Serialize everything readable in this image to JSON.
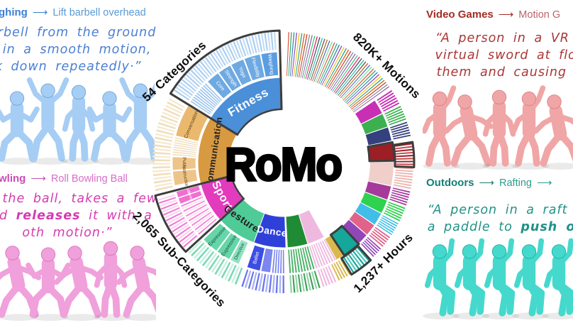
{
  "title": "RoMo",
  "icons": {
    "arrow": "⟶"
  },
  "examples": {
    "top_left": {
      "category_fragment": "ghing",
      "subcategory": "Lift barbell overhead",
      "heading_color": "#3b7fd6",
      "target_color": "#5b9bd5",
      "quote_color": "#4a7fd4",
      "quote_lines": [
        [
          {
            "t": "a barbell from the ground"
          }
        ],
        [
          {
            "t": "ead in a smooth motion,"
          }
        ],
        [
          {
            "t": "ack down repeatedly·”"
          }
        ]
      ],
      "figure_color": "#a6cdf4",
      "figure_shade": "#6fa3d8"
    },
    "top_right": {
      "category": "Video Games",
      "subcategory_fragment": "Motion G",
      "heading_color": "#a32c24",
      "target_color": "#b9646a",
      "quote_color": "#a93636",
      "quote_lines": [
        [
          {
            "t": "“A person in a VR head"
          }
        ],
        [
          {
            "t": "virtual sword at floating"
          }
        ],
        [
          {
            "t": "them and causing them"
          }
        ]
      ],
      "figure_color": "#f0a6a6",
      "figure_shade": "#d67f82"
    },
    "bottom_left": {
      "category_fragment": "wling",
      "subcategory": "Roll Bowling Ball",
      "heading_color": "#c94cb4",
      "target_color": "#d66ec8",
      "quote_color": "#d63bb0",
      "quote_lines": [
        [
          {
            "t": "up the ball, takes a few"
          }
        ],
        [
          {
            "t": "and "
          },
          {
            "t": "releases",
            "b": true
          },
          {
            "t": " it with a"
          }
        ],
        [
          {
            "t": "oth motion·”"
          }
        ]
      ],
      "figure_color": "#f0a0da",
      "figure_shade": "#d872bd"
    },
    "bottom_right": {
      "category": "Outdoors",
      "subcategory": "Rafting",
      "has_second_arrow": true,
      "heading_color": "#157f76",
      "target_color": "#2a9d8f",
      "quote_color": "#219187",
      "quote_lines": [
        [
          {
            "t": "“A person in a raft on th"
          }
        ],
        [
          {
            "t": "a paddle to "
          },
          {
            "t": "push off",
            "b": true
          },
          {
            "t": " fro"
          }
        ]
      ],
      "figure_color": "#45d9cd",
      "figure_shade": "#1faea3"
    }
  },
  "chart_data": {
    "type": "sunburst",
    "center_label": "RoMo",
    "highlight_color": "#3d3d3d",
    "stats": [
      {
        "label": "54 Categories",
        "angle": 310,
        "rotate": -43
      },
      {
        "label": "820K+ Motions",
        "angle": 47,
        "rotate": 44
      },
      {
        "label": "2,065 Sub-Categories",
        "angle": 227,
        "rotate": 46
      },
      {
        "label": "1,237+ Hours",
        "angle": 135,
        "rotate": -45
      }
    ],
    "radii": {
      "cat_in": 76,
      "cat_out": 120,
      "sub_in": 123,
      "sub_out": 156,
      "stripe_in": 159,
      "stripe_out": 184,
      "label_r": 200
    },
    "categories": [
      {
        "name": "Fitness",
        "color": "#4a8fd8",
        "a0": 302,
        "a1": 358,
        "label_size": 17,
        "label_color": "#ffffff"
      },
      {
        "name": "Communication",
        "color": "#d79a41",
        "a0": 255,
        "a1": 302,
        "label_size": 12.5,
        "label_color": "#1d1d1d"
      },
      {
        "name": "Sport",
        "color": "#e33bbd",
        "a0": 228,
        "a1": 255,
        "label_size": 16,
        "label_color": "#ffffff"
      },
      {
        "name": "Gestures",
        "color": "#4ecb97",
        "a0": 200,
        "a1": 228,
        "label_size": 14,
        "label_color": "#1d1d1d"
      },
      {
        "name": "Dance",
        "color": "#2f40d9",
        "a0": 178,
        "a1": 200,
        "label_size": 13.5,
        "label_color": "#ffffff"
      },
      {
        "name": "",
        "color": "#1f8c35",
        "a0": 163,
        "a1": 177
      },
      {
        "name": "",
        "color": "#efb9df",
        "a0": 151,
        "a1": 163
      }
    ],
    "subs": [
      {
        "name": "Core",
        "color": "#6ea9e2",
        "a0": 317,
        "a1": 324,
        "orient": "radial",
        "label_color": "#ffffff",
        "label_size": 7
      },
      {
        "name": "Strength",
        "color": "#6ea9e2",
        "a0": 324.5,
        "a1": 331.5,
        "orient": "radial",
        "label_color": "#ffffff",
        "label_size": 7
      },
      {
        "name": "Yoga",
        "color": "#6ea9e2",
        "a0": 332,
        "a1": 339,
        "orient": "radial",
        "label_color": "#ffffff",
        "label_size": 7
      },
      {
        "name": "Flexibility",
        "color": "#6ea9e2",
        "a0": 339.5,
        "a1": 348,
        "orient": "radial",
        "label_color": "#ffffff",
        "label_size": 7
      },
      {
        "name": "Weighing",
        "color": "#5b9de0",
        "a0": 348.5,
        "a1": 357,
        "orient": "radial",
        "label_color": "#ffffff",
        "label_size": 7
      },
      {
        "name": "Conversation",
        "color": "#eab96e",
        "a0": 284,
        "a1": 301,
        "orient": "tangent",
        "label_color": "#5f4413",
        "label_size": 7
      },
      {
        "name": "Public",
        "color": "#eec488",
        "a0": 266,
        "a1": 273,
        "orient": "tangent",
        "label_color": "#5f4413",
        "label_size": 6.5
      },
      {
        "name": "Instruction",
        "color": "#eec488",
        "a0": 258,
        "a1": 265.5,
        "orient": "tangent",
        "label_color": "#5f4413",
        "label_size": 6.5
      },
      {
        "name": "Cycling",
        "color": "#f06fd0",
        "a0": 251.5,
        "a1": 254.8,
        "orient": "tangent",
        "label_color": "#ffffff",
        "label_size": 5
      },
      {
        "name": "Climbing",
        "color": "#f06fd0",
        "a0": 248,
        "a1": 251.2,
        "orient": "tangent",
        "label_color": "#ffffff",
        "label_size": 5
      },
      {
        "name": "Expressive",
        "color": "#66d5a8",
        "a0": 217,
        "a1": 226,
        "orient": "radial",
        "label_color": "#14553c",
        "label_size": 7
      },
      {
        "name": "Expressive",
        "color": "#66d5a8",
        "a0": 209,
        "a1": 216.5,
        "orient": "radial",
        "label_color": "#14553c",
        "label_size": 7
      },
      {
        "name": "Directive",
        "color": "#8fe2c2",
        "a0": 203.5,
        "a1": 208.5,
        "orient": "radial",
        "label_color": "#14553c",
        "label_size": 6.5
      },
      {
        "name": "Ballet",
        "color": "#3c4de4",
        "a0": 192,
        "a1": 199,
        "orient": "radial",
        "label_color": "#ffffff",
        "label_size": 7
      },
      {
        "name": "",
        "color": "#7b86ee",
        "a0": 186.5,
        "a1": 191.5
      }
    ],
    "blocks": [
      {
        "color": "#c92fb5",
        "a0": 56,
        "a1": 63.5
      },
      {
        "color": "#3cb04f",
        "a0": 64,
        "a1": 71
      },
      {
        "color": "#35407e",
        "a0": 71.5,
        "a1": 78.5
      },
      {
        "color": "#9c1f26",
        "a0": 80,
        "a1": 88.5
      },
      {
        "color": "#f0cfca",
        "a0": 89.5,
        "a1": 102
      },
      {
        "color": "#a53a9a",
        "a0": 102.5,
        "a1": 109.5
      },
      {
        "color": "#2fd14e",
        "a0": 110,
        "a1": 117
      },
      {
        "color": "#41bde8",
        "a0": 117.5,
        "a1": 124
      },
      {
        "color": "#e2638a",
        "a0": 124.5,
        "a1": 130.5
      },
      {
        "color": "#9147b8",
        "a0": 131,
        "a1": 136.5
      },
      {
        "color": "#14a79a",
        "a0": 137.5,
        "a1": 146
      },
      {
        "color": "#d9b94e",
        "a0": 146.5,
        "a1": 151
      }
    ],
    "stripe_groups": [
      {
        "a0": 2,
        "a1": 55,
        "n": 46,
        "ring": "full",
        "duty": 0.35,
        "colors": [
          "#e74c3c",
          "#27ae60",
          "#2980b9",
          "#8e44ad",
          "#f1c40f",
          "#16a085",
          "#d35400",
          "#c0392b",
          "#7f8c8d",
          "#9b59b6",
          "#2ecc71",
          "#e91e63",
          "#34495e",
          "#1abc9c",
          "#6d4c41",
          "#b5651d",
          "#4a69bd",
          "#78e08f"
        ]
      },
      {
        "a0": 56,
        "a1": 63.5,
        "n": 6,
        "colors": [
          "#c92fb5"
        ]
      },
      {
        "a0": 64,
        "a1": 71,
        "n": 6,
        "colors": [
          "#3cb04f"
        ]
      },
      {
        "a0": 71.5,
        "a1": 78.5,
        "n": 6,
        "colors": [
          "#35407e"
        ]
      },
      {
        "a0": 81,
        "a1": 91.5,
        "n": 8,
        "colors": [
          "#9c1f26",
          "#c24a50"
        ]
      },
      {
        "a0": 92,
        "a1": 102,
        "n": 8,
        "colors": [
          "#eeb6b0"
        ]
      },
      {
        "a0": 102.5,
        "a1": 109.5,
        "n": 6,
        "colors": [
          "#a53a9a"
        ]
      },
      {
        "a0": 110,
        "a1": 117,
        "n": 6,
        "colors": [
          "#2fd14e"
        ]
      },
      {
        "a0": 117.5,
        "a1": 124,
        "n": 6,
        "colors": [
          "#41bde8"
        ]
      },
      {
        "a0": 124.5,
        "a1": 130.5,
        "n": 5,
        "colors": [
          "#e2638a"
        ]
      },
      {
        "a0": 131,
        "a1": 136.5,
        "n": 5,
        "colors": [
          "#9147b8"
        ]
      },
      {
        "a0": 138,
        "a1": 148,
        "n": 7,
        "colors": [
          "#14a79a",
          "#4cc8bd"
        ]
      },
      {
        "a0": 148.5,
        "a1": 155,
        "n": 5,
        "colors": [
          "#d9b94e"
        ]
      },
      {
        "a0": 155.5,
        "a1": 162.5,
        "n": 5,
        "colors": [
          "#efb9df"
        ]
      },
      {
        "a0": 151,
        "a1": 163,
        "n": 8,
        "ring": "sub",
        "colors": [
          "#efb9df"
        ]
      },
      {
        "a0": 163,
        "a1": 177,
        "n": 9,
        "ring": "sub",
        "colors": [
          "#4db36a"
        ]
      },
      {
        "a0": 163,
        "a1": 177,
        "n": 10,
        "colors": [
          "#3da055",
          "#8fd3a4"
        ]
      },
      {
        "a0": 179,
        "a1": 186,
        "n": 5,
        "ring": "sub",
        "colors": [
          "#7c87ef"
        ]
      },
      {
        "a0": 179,
        "a1": 199,
        "n": 13,
        "colors": [
          "#6a77ea",
          "#aab3f5"
        ]
      },
      {
        "a0": 200.5,
        "a1": 227,
        "n": 16,
        "colors": [
          "#79d8b4",
          "#c8f0e0"
        ]
      },
      {
        "a0": 229,
        "a1": 247.5,
        "n": 13,
        "ring": "sub",
        "colors": [
          "#f47fd6",
          "#fce0f4"
        ]
      },
      {
        "a0": 229,
        "a1": 254,
        "n": 18,
        "colors": [
          "#f27ad2",
          "#fbd3ef"
        ]
      },
      {
        "a0": 273.5,
        "a1": 283.5,
        "n": 8,
        "ring": "sub",
        "colors": [
          "#f3dfc0"
        ]
      },
      {
        "a0": 257,
        "a1": 300,
        "n": 26,
        "colors": [
          "#f0ddba",
          "#f6ead1"
        ]
      },
      {
        "a0": 303,
        "a1": 316,
        "n": 10,
        "ring": "sub",
        "colors": [
          "#9cc4ec"
        ]
      },
      {
        "a0": 303,
        "a1": 357,
        "n": 38,
        "colors": [
          "#a9cdf0",
          "#c3dcf5"
        ]
      }
    ],
    "highlights": [
      {
        "a0": 301.5,
        "a1": 358.5,
        "r0": 75,
        "r1": 186
      },
      {
        "a0": 227.5,
        "a1": 255.5,
        "r0": 75,
        "r1": 186
      },
      {
        "a0": 79.5,
        "a1": 89,
        "r0": 122,
        "r1": 157
      },
      {
        "a0": 81,
        "a1": 92,
        "r0": 158,
        "r1": 185
      },
      {
        "a0": 137,
        "a1": 146.5,
        "r0": 122,
        "r1": 157
      },
      {
        "a0": 138,
        "a1": 148.5,
        "r0": 158,
        "r1": 185
      }
    ]
  }
}
